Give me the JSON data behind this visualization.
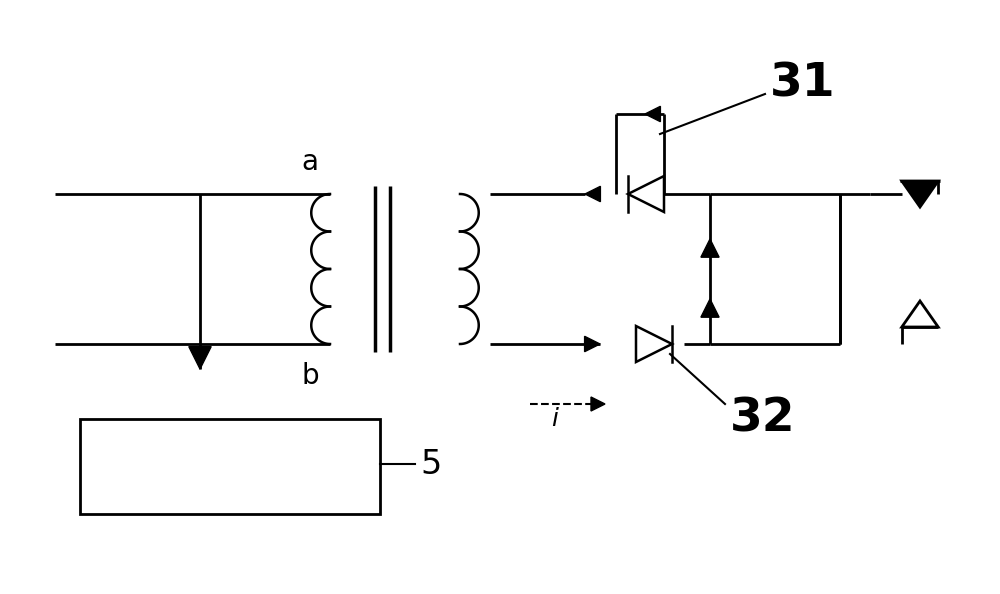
{
  "bg_color": "#ffffff",
  "line_color": "#000000",
  "lw": 2.0,
  "label_a": "a",
  "label_b": "b",
  "label_5": "5",
  "label_31": "31",
  "label_32": "32",
  "label_i": "i",
  "figsize": [
    10.0,
    5.94
  ],
  "dpi": 100
}
